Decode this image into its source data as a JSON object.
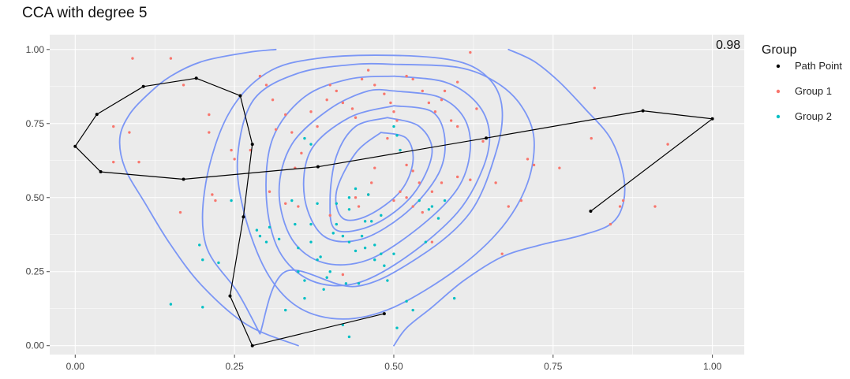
{
  "chart_data": {
    "type": "scatter",
    "title": "CCA with degree 5",
    "xlabel": "",
    "ylabel": "",
    "xlim": [
      -0.04,
      1.05
    ],
    "ylim": [
      -0.03,
      1.05
    ],
    "x_ticks": [
      0.0,
      0.25,
      0.5,
      0.75,
      1.0
    ],
    "x_tick_labels": [
      "0.00",
      "0.25",
      "0.50",
      "0.75",
      "1.00"
    ],
    "y_ticks": [
      0.0,
      0.25,
      0.5,
      0.75,
      1.0
    ],
    "y_tick_labels": [
      "0.00",
      "0.25",
      "0.50",
      "0.75",
      "1.00"
    ],
    "grid": true,
    "legend": {
      "title": "Group",
      "placement": "right",
      "entries": [
        "Path Point",
        "Group 1",
        "Group 2"
      ]
    },
    "annotation": {
      "text": "0.98",
      "x": 1.0,
      "y": 1.0
    },
    "colors": {
      "panel": "#EBEBEB",
      "grid": "#FFFFFF",
      "path": "#000000",
      "group1": "#F8766D",
      "group2": "#00BFC4",
      "contour": "#7B96F5"
    },
    "path_points": {
      "name": "Path Point",
      "x": [
        0.485,
        0.278,
        0.243,
        0.264,
        0.278,
        0.259,
        0.19,
        0.107,
        0.034,
        0.0,
        0.04,
        0.17,
        0.381,
        0.645,
        0.891,
        1.0,
        0.809
      ],
      "y": [
        0.108,
        0.0,
        0.168,
        0.435,
        0.68,
        0.844,
        0.903,
        0.875,
        0.781,
        0.673,
        0.587,
        0.562,
        0.604,
        0.701,
        0.793,
        0.766,
        0.454
      ]
    },
    "series": [
      {
        "name": "Group 1",
        "points": [
          [
            0.09,
            0.97
          ],
          [
            0.15,
            0.97
          ],
          [
            0.085,
            0.72
          ],
          [
            0.06,
            0.74
          ],
          [
            0.06,
            0.62
          ],
          [
            0.1,
            0.62
          ],
          [
            0.17,
            0.88
          ],
          [
            0.21,
            0.78
          ],
          [
            0.21,
            0.72
          ],
          [
            0.165,
            0.45
          ],
          [
            0.215,
            0.51
          ],
          [
            0.22,
            0.49
          ],
          [
            0.245,
            0.66
          ],
          [
            0.25,
            0.63
          ],
          [
            0.275,
            0.66
          ],
          [
            0.29,
            0.91
          ],
          [
            0.3,
            0.88
          ],
          [
            0.31,
            0.83
          ],
          [
            0.33,
            0.78
          ],
          [
            0.315,
            0.73
          ],
          [
            0.34,
            0.72
          ],
          [
            0.355,
            0.65
          ],
          [
            0.345,
            0.6
          ],
          [
            0.305,
            0.52
          ],
          [
            0.33,
            0.48
          ],
          [
            0.35,
            0.47
          ],
          [
            0.37,
            0.79
          ],
          [
            0.38,
            0.74
          ],
          [
            0.395,
            0.83
          ],
          [
            0.4,
            0.88
          ],
          [
            0.41,
            0.86
          ],
          [
            0.42,
            0.82
          ],
          [
            0.435,
            0.8
          ],
          [
            0.44,
            0.77
          ],
          [
            0.45,
            0.9
          ],
          [
            0.46,
            0.93
          ],
          [
            0.47,
            0.88
          ],
          [
            0.485,
            0.85
          ],
          [
            0.495,
            0.82
          ],
          [
            0.5,
            0.79
          ],
          [
            0.505,
            0.76
          ],
          [
            0.52,
            0.91
          ],
          [
            0.53,
            0.9
          ],
          [
            0.545,
            0.86
          ],
          [
            0.555,
            0.82
          ],
          [
            0.565,
            0.79
          ],
          [
            0.575,
            0.83
          ],
          [
            0.58,
            0.86
          ],
          [
            0.6,
            0.89
          ],
          [
            0.59,
            0.76
          ],
          [
            0.6,
            0.74
          ],
          [
            0.62,
            0.99
          ],
          [
            0.63,
            0.8
          ],
          [
            0.64,
            0.69
          ],
          [
            0.49,
            0.7
          ],
          [
            0.51,
            0.66
          ],
          [
            0.52,
            0.61
          ],
          [
            0.53,
            0.59
          ],
          [
            0.54,
            0.55
          ],
          [
            0.47,
            0.6
          ],
          [
            0.465,
            0.55
          ],
          [
            0.46,
            0.51
          ],
          [
            0.445,
            0.47
          ],
          [
            0.44,
            0.5
          ],
          [
            0.5,
            0.49
          ],
          [
            0.51,
            0.52
          ],
          [
            0.52,
            0.5
          ],
          [
            0.53,
            0.47
          ],
          [
            0.545,
            0.45
          ],
          [
            0.56,
            0.52
          ],
          [
            0.575,
            0.55
          ],
          [
            0.6,
            0.57
          ],
          [
            0.62,
            0.56
          ],
          [
            0.66,
            0.55
          ],
          [
            0.68,
            0.47
          ],
          [
            0.7,
            0.49
          ],
          [
            0.71,
            0.63
          ],
          [
            0.72,
            0.61
          ],
          [
            0.76,
            0.6
          ],
          [
            0.81,
            0.7
          ],
          [
            0.815,
            0.87
          ],
          [
            0.855,
            0.47
          ],
          [
            0.86,
            0.49
          ],
          [
            0.91,
            0.47
          ],
          [
            0.93,
            0.68
          ],
          [
            0.84,
            0.41
          ],
          [
            0.67,
            0.31
          ],
          [
            0.56,
            0.35
          ],
          [
            0.42,
            0.24
          ],
          [
            0.4,
            0.44
          ]
        ]
      },
      {
        "name": "Group 2",
        "points": [
          [
            0.15,
            0.14
          ],
          [
            0.195,
            0.34
          ],
          [
            0.2,
            0.29
          ],
          [
            0.2,
            0.13
          ],
          [
            0.225,
            0.28
          ],
          [
            0.245,
            0.49
          ],
          [
            0.285,
            0.39
          ],
          [
            0.29,
            0.37
          ],
          [
            0.3,
            0.35
          ],
          [
            0.305,
            0.4
          ],
          [
            0.32,
            0.36
          ],
          [
            0.33,
            0.12
          ],
          [
            0.34,
            0.49
          ],
          [
            0.345,
            0.41
          ],
          [
            0.35,
            0.33
          ],
          [
            0.35,
            0.25
          ],
          [
            0.36,
            0.22
          ],
          [
            0.36,
            0.16
          ],
          [
            0.37,
            0.41
          ],
          [
            0.37,
            0.35
          ],
          [
            0.38,
            0.29
          ],
          [
            0.385,
            0.3
          ],
          [
            0.39,
            0.19
          ],
          [
            0.395,
            0.23
          ],
          [
            0.4,
            0.25
          ],
          [
            0.405,
            0.38
          ],
          [
            0.41,
            0.41
          ],
          [
            0.42,
            0.37
          ],
          [
            0.425,
            0.21
          ],
          [
            0.43,
            0.35
          ],
          [
            0.44,
            0.53
          ],
          [
            0.44,
            0.32
          ],
          [
            0.445,
            0.21
          ],
          [
            0.45,
            0.37
          ],
          [
            0.455,
            0.33
          ],
          [
            0.46,
            0.51
          ],
          [
            0.465,
            0.42
          ],
          [
            0.47,
            0.34
          ],
          [
            0.48,
            0.31
          ],
          [
            0.485,
            0.27
          ],
          [
            0.49,
            0.22
          ],
          [
            0.5,
            0.31
          ],
          [
            0.5,
            0.74
          ],
          [
            0.505,
            0.71
          ],
          [
            0.51,
            0.66
          ],
          [
            0.52,
            0.15
          ],
          [
            0.53,
            0.12
          ],
          [
            0.54,
            0.49
          ],
          [
            0.55,
            0.35
          ],
          [
            0.555,
            0.46
          ],
          [
            0.56,
            0.47
          ],
          [
            0.57,
            0.43
          ],
          [
            0.58,
            0.49
          ],
          [
            0.595,
            0.16
          ],
          [
            0.36,
            0.7
          ],
          [
            0.37,
            0.68
          ],
          [
            0.43,
            0.46
          ],
          [
            0.47,
            0.29
          ],
          [
            0.42,
            0.07
          ],
          [
            0.43,
            0.03
          ],
          [
            0.505,
            0.06
          ],
          [
            0.48,
            0.44
          ],
          [
            0.38,
            0.48
          ],
          [
            0.41,
            0.48
          ],
          [
            0.43,
            0.5
          ],
          [
            0.455,
            0.42
          ]
        ]
      }
    ],
    "contours": [
      {
        "name": "level-1",
        "x": [
          0.315,
          0.27,
          0.2,
          0.15,
          0.115,
          0.085,
          0.07,
          0.078,
          0.11,
          0.15,
          0.2,
          0.27,
          0.35
        ],
        "y": [
          1.0,
          0.99,
          0.96,
          0.91,
          0.85,
          0.78,
          0.7,
          0.6,
          0.48,
          0.34,
          0.2,
          0.07,
          0.0
        ]
      },
      {
        "name": "level-2",
        "x": [
          0.29,
          0.255,
          0.205,
          0.205,
          0.24,
          0.3,
          0.38,
          0.5,
          0.6,
          0.65,
          0.67,
          0.66,
          0.62,
          0.54,
          0.44,
          0.33,
          0.29
        ],
        "y": [
          0.04,
          0.18,
          0.34,
          0.55,
          0.78,
          0.92,
          0.97,
          0.98,
          0.96,
          0.9,
          0.8,
          0.65,
          0.45,
          0.3,
          0.2,
          0.25,
          0.04
        ]
      },
      {
        "name": "level-3",
        "x": [
          0.5,
          0.6,
          0.66,
          0.7,
          0.72,
          0.71,
          0.67,
          0.6,
          0.5,
          0.42,
          0.35,
          0.3,
          0.265,
          0.255,
          0.28,
          0.35,
          0.44,
          0.5
        ],
        "y": [
          0.95,
          0.94,
          0.89,
          0.81,
          0.7,
          0.55,
          0.4,
          0.26,
          0.13,
          0.09,
          0.13,
          0.25,
          0.45,
          0.64,
          0.83,
          0.92,
          0.95,
          0.95
        ]
      },
      {
        "name": "level-4",
        "x": [
          0.5,
          0.58,
          0.63,
          0.65,
          0.64,
          0.6,
          0.52,
          0.44,
          0.37,
          0.32,
          0.3,
          0.31,
          0.36,
          0.43,
          0.5
        ],
        "y": [
          0.91,
          0.89,
          0.82,
          0.72,
          0.6,
          0.45,
          0.3,
          0.21,
          0.22,
          0.32,
          0.5,
          0.7,
          0.84,
          0.9,
          0.91
        ]
      },
      {
        "name": "level-5",
        "x": [
          0.5,
          0.57,
          0.61,
          0.62,
          0.6,
          0.54,
          0.46,
          0.39,
          0.34,
          0.32,
          0.34,
          0.4,
          0.46,
          0.5
        ],
        "y": [
          0.86,
          0.84,
          0.77,
          0.66,
          0.53,
          0.4,
          0.29,
          0.28,
          0.36,
          0.52,
          0.68,
          0.8,
          0.86,
          0.86
        ]
      },
      {
        "name": "level-6",
        "x": [
          0.5,
          0.56,
          0.58,
          0.57,
          0.52,
          0.45,
          0.39,
          0.36,
          0.37,
          0.43,
          0.5
        ],
        "y": [
          0.81,
          0.79,
          0.7,
          0.58,
          0.45,
          0.36,
          0.37,
          0.5,
          0.66,
          0.77,
          0.81
        ]
      },
      {
        "name": "level-7",
        "x": [
          0.49,
          0.54,
          0.56,
          0.53,
          0.47,
          0.41,
          0.4,
          0.41,
          0.44,
          0.49
        ],
        "y": [
          0.77,
          0.74,
          0.65,
          0.51,
          0.41,
          0.39,
          0.49,
          0.64,
          0.74,
          0.77
        ]
      },
      {
        "name": "level-8",
        "x": [
          0.48,
          0.52,
          0.53,
          0.51,
          0.46,
          0.42,
          0.41,
          0.44,
          0.48
        ],
        "y": [
          0.72,
          0.7,
          0.62,
          0.52,
          0.44,
          0.43,
          0.52,
          0.65,
          0.72
        ]
      },
      {
        "name": "level-9",
        "x": [
          0.68,
          0.72,
          0.76,
          0.8,
          0.84,
          0.86,
          0.86,
          0.84,
          0.79,
          0.73,
          0.67,
          0.61,
          0.56,
          0.52,
          0.5
        ],
        "y": [
          1.0,
          0.96,
          0.89,
          0.8,
          0.7,
          0.58,
          0.48,
          0.41,
          0.37,
          0.34,
          0.3,
          0.22,
          0.13,
          0.06,
          0.0
        ]
      }
    ]
  }
}
